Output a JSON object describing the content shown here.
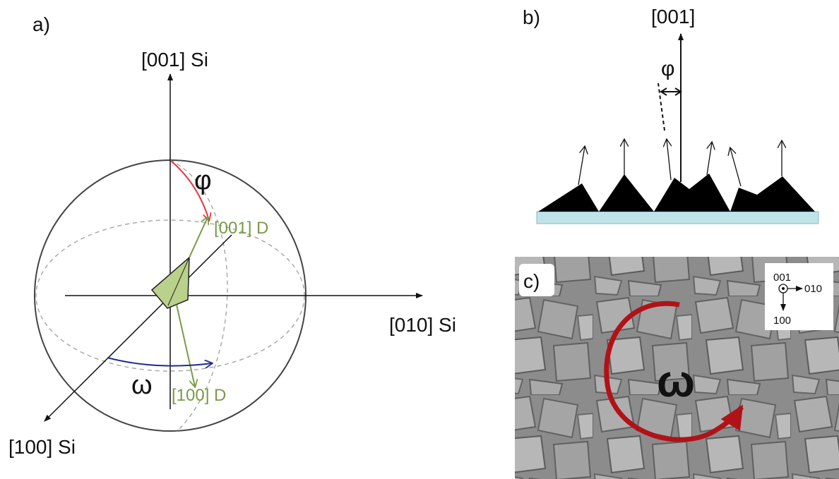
{
  "panel_a": {
    "label": "a)",
    "axis_z_label": "[001] Si",
    "axis_y_label": "[010] Si",
    "axis_x_label": "[100] Si",
    "phi_symbol": "φ",
    "omega_symbol": "ω",
    "crystal_c_label": "[001] D",
    "crystal_a_label": "[100] D",
    "colors": {
      "phi_arc": "#e8323c",
      "omega_arc": "#1f2b8f",
      "crystal": "#7a9a4a",
      "crystal_fill": "#b9d18a"
    }
  },
  "panel_b": {
    "label": "b)",
    "normal_label": "[001]",
    "phi_symbol": "φ",
    "colors": {
      "substrate": "#bfe3e8",
      "pyramids": "#000000"
    }
  },
  "panel_c": {
    "label": "c)",
    "omega_symbol": "ω",
    "inset_out": "001",
    "inset_right": "010",
    "inset_down": "100",
    "colors": {
      "rotation_arrow": "#b01218",
      "sem_background": "#8e8e8e"
    }
  }
}
